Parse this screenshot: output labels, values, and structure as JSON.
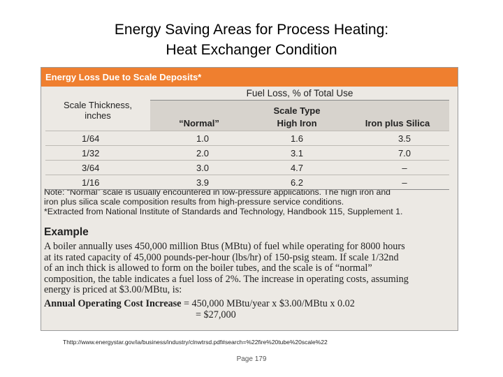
{
  "slide": {
    "title_line1": "Energy Saving Areas for Process Heating:",
    "title_line2": "Heat Exchanger Condition"
  },
  "panel": {
    "header": "Energy Loss Due to Scale Deposits*",
    "table": {
      "left_header_line1": "Scale Thickness,",
      "left_header_line2": "inches",
      "fuel_loss_header": "Fuel Loss, % of Total Use",
      "scale_type_header": "Scale Type",
      "columns": [
        "“Normal”",
        "High Iron",
        "Iron plus Silica"
      ],
      "rows": [
        {
          "thickness": "1/64",
          "normal": "1.0",
          "high_iron": "1.6",
          "iron_silica": "3.5"
        },
        {
          "thickness": "1/32",
          "normal": "2.0",
          "high_iron": "3.1",
          "iron_silica": "7.0"
        },
        {
          "thickness": "3/64",
          "normal": "3.0",
          "high_iron": "4.7",
          "iron_silica": "–"
        },
        {
          "thickness": "1/16",
          "normal": "3.9",
          "high_iron": "6.2",
          "iron_silica": "–"
        }
      ]
    },
    "note_line1": "Note: “Normal” scale is usually encountered in low-pressure applications. The high iron and",
    "note_line2": "iron plus silica scale composition results from high-pressure service conditions.",
    "note_line3": "*Extracted from National Institute of Standards and Technology, Handbook 115, Supplement 1.",
    "example_title": "Example",
    "example_lines": [
      "A boiler annually uses 450,000 million Btus (MBtu) of fuel while operating for 8000 hours",
      "at its rated capacity of 45,000 pounds-per-hour (lbs/hr) of 150-psig steam. If scale 1/32nd",
      "of an inch thick is allowed to form on the boiler tubes, and the scale is of “normal”",
      "composition, the table indicates a fuel loss of 2%. The increase in operating costs, assuming",
      "energy is priced at $3.00/MBtu, is:"
    ],
    "formula_label": "Annual Operating Cost Increase",
    "formula_line1": " = 450,000 MBtu/year x $3.00/MBtu x 0.02",
    "formula_line2": "= $27,000"
  },
  "source_url": "Thttp://www.energystar.gov/ia/business/industry/clnwtrsd.pdf#search=%22fire%20tube%20scale%22",
  "page_number": "Page 179"
}
